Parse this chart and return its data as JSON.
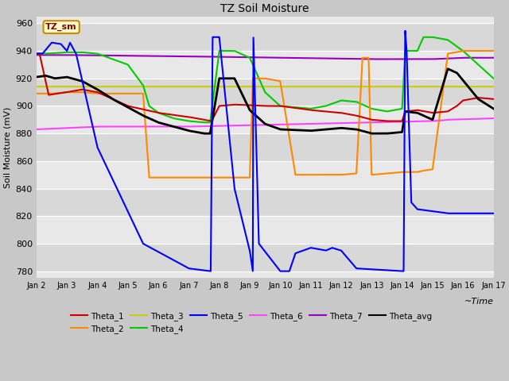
{
  "title": "TZ Soil Moisture",
  "ylabel": "Soil Moisture (mV)",
  "ylim": [
    775,
    965
  ],
  "xlim": [
    0,
    15
  ],
  "xtick_labels": [
    "Jan 2",
    "Jan 3",
    "Jan 4",
    "Jan 5",
    "Jan 6",
    "Jan 7",
    "Jan 8",
    "Jan 9",
    "Jan 10",
    "Jan 11",
    "Jan 12",
    "Jan 13",
    "Jan 14",
    "Jan 15",
    "Jan 16",
    "Jan 17"
  ],
  "ytick_values": [
    780,
    800,
    820,
    840,
    860,
    880,
    900,
    920,
    940,
    960
  ],
  "colors": {
    "Theta_1": "#cc0000",
    "Theta_2": "#ff8800",
    "Theta_3": "#cccc00",
    "Theta_4": "#00cc00",
    "Theta_5": "#0000ff",
    "Theta_6": "#ff44ff",
    "Theta_7": "#9900bb",
    "Theta_avg": "#000000"
  }
}
